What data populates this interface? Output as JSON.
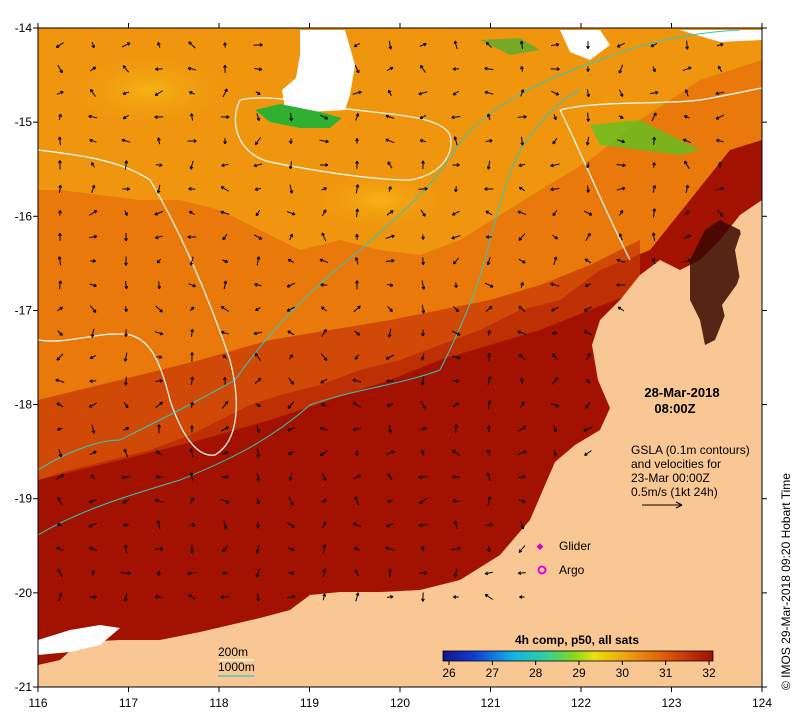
{
  "date": "28-Mar-2018",
  "time": "08:00Z",
  "gsla": {
    "line1": "GSLA (0.1m contours)",
    "line2": "and velocities for",
    "line3": "23-Mar 00:00Z",
    "line4": "0.5m/s (1kt 24h)"
  },
  "legend": {
    "glider_label": "Glider",
    "argo_label": "Argo",
    "depth_200": "200m",
    "depth_1000": "1000m"
  },
  "colorbar": {
    "title": "4h comp, p50, all sats",
    "ticks": [
      "26",
      "27",
      "28",
      "29",
      "30",
      "31",
      "32"
    ]
  },
  "credit": "© IMOS 29-Mar-2018 09:20 Hobart Time",
  "axes": {
    "x_ticks": [
      "116",
      "117",
      "118",
      "119",
      "120",
      "121",
      "122",
      "123",
      "124"
    ],
    "y_ticks": [
      "-14",
      "-15",
      "-16",
      "-17",
      "-18",
      "-19",
      "-20",
      "-21"
    ]
  },
  "colors": {
    "land": "#F9C794",
    "warm": "#A51200",
    "mid": "#E8780A",
    "cool": "#F2A20C",
    "contour_gsla": "#ffffff",
    "contour_depth": "#30C8C0",
    "glider": "#D000D0",
    "argo": "#E000E0"
  }
}
